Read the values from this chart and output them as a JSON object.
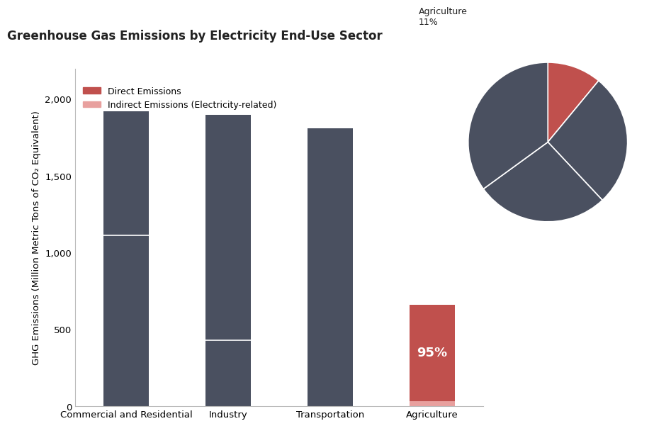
{
  "title": "Greenhouse Gas Emissions by Electricity End-Use Sector",
  "ylabel": "GHG Emissions (Million Metric Tons of CO₂ Equivalent)",
  "categories": [
    "Commercial and Residential",
    "Industry",
    "Transportation",
    "Agriculture"
  ],
  "direct_emissions": [
    1920,
    1900,
    1810,
    660
  ],
  "indirect_emissions": [
    1115,
    430,
    0,
    35
  ],
  "bar_color_dark": "#4a5060",
  "bar_color_red": "#c0504d",
  "bar_color_light_red": "#e8a09e",
  "ylim": [
    0,
    2200
  ],
  "yticks": [
    0,
    500,
    1000,
    1500,
    2000
  ],
  "legend_labels": [
    "Direct Emissions",
    "Indirect Emissions (Electricity-related)"
  ],
  "pie_values": [
    11,
    27,
    27,
    35
  ],
  "pie_wedge_colors": [
    "#c0504d",
    "#4a5060",
    "#4a5060",
    "#4a5060"
  ],
  "pie_ag_label": "Agriculture\n11%",
  "annotation_text": "95%",
  "background_color": "#ffffff",
  "text_color": "#222222"
}
